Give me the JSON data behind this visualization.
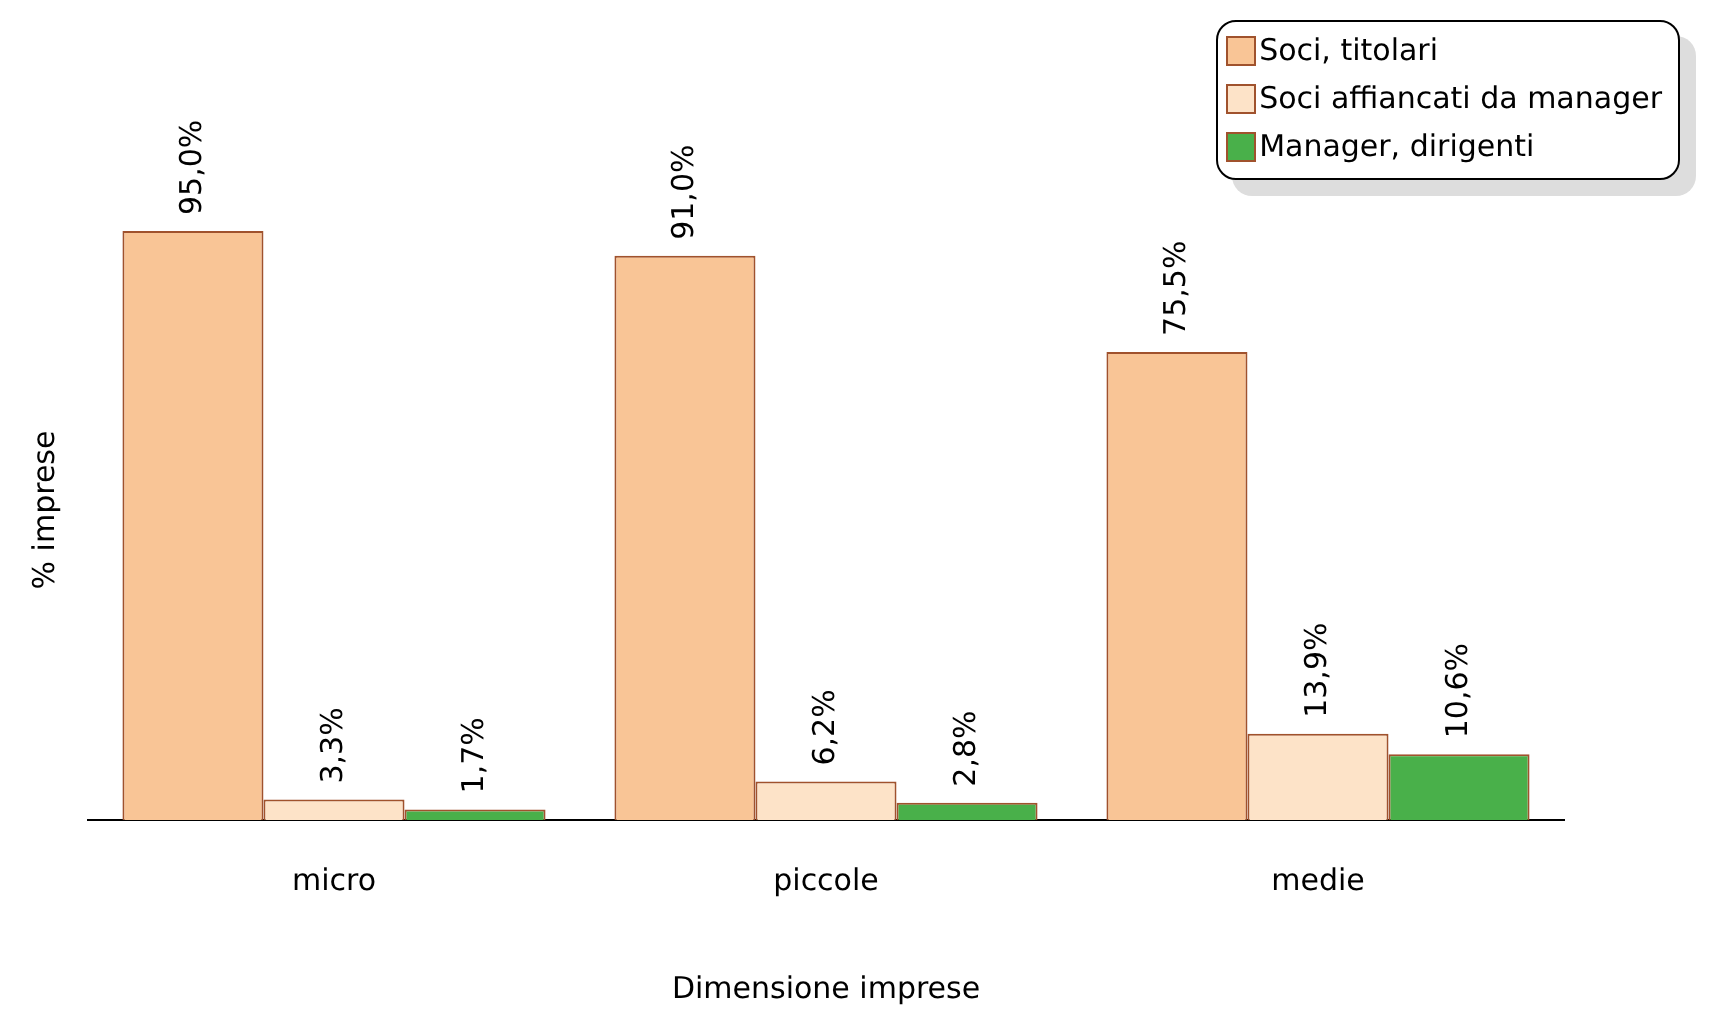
{
  "chart_data": {
    "type": "bar",
    "xlabel": "Dimensione imprese",
    "ylabel": "% imprese",
    "categories": [
      "micro",
      "piccole",
      "medie"
    ],
    "series": [
      {
        "name": "Soci, titolari",
        "color": "#f9c596",
        "values": [
          95.0,
          91.0,
          75.5
        ],
        "value_labels": [
          "95,0%",
          "91,0%",
          "75,5%"
        ]
      },
      {
        "name": "Soci affiancati da manager",
        "color": "#fde3c8",
        "values": [
          3.3,
          6.2,
          13.9
        ],
        "value_labels": [
          "3,3%",
          "6,2%",
          "13,9%"
        ]
      },
      {
        "name": "Manager, dirigenti",
        "color": "#49b04a",
        "values": [
          1.7,
          2.8,
          10.6
        ],
        "value_labels": [
          "1,7%",
          "2,8%",
          "10,6%"
        ]
      }
    ],
    "tick_labels": "x",
    "grid": false,
    "legend": "top right"
  }
}
